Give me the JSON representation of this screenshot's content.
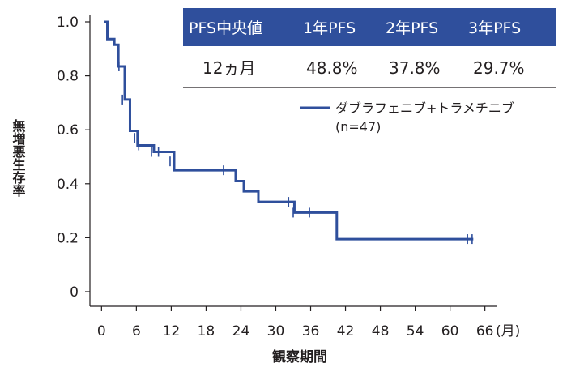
{
  "chart_data": {
    "type": "line",
    "subtype": "kaplan-meier",
    "title": "",
    "xlabel": "観察期間",
    "ylabel": "無増悪生存率",
    "x_unit": "(月)",
    "xlim": [
      -2,
      68
    ],
    "ylim": [
      0,
      1.0
    ],
    "x_ticks": [
      0,
      6,
      12,
      18,
      24,
      30,
      36,
      42,
      48,
      54,
      60,
      66
    ],
    "y_ticks": [
      0,
      0.2,
      0.4,
      0.6,
      0.8,
      1.0
    ],
    "y_tick_labels": [
      "0",
      "0.2",
      "0.4",
      "0.6",
      "0.8",
      "1.0"
    ],
    "grid": false,
    "series": [
      {
        "name": "ダブラフェニブ+トラメチニブ",
        "color": "#2f4f9c",
        "steps": [
          [
            0.5,
            1.0
          ],
          [
            1.0,
            0.936
          ],
          [
            2.2,
            0.915
          ],
          [
            2.9,
            0.835
          ],
          [
            4.0,
            0.712
          ],
          [
            4.9,
            0.596
          ],
          [
            6.2,
            0.542
          ],
          [
            9.0,
            0.518
          ],
          [
            11.0,
            0.518
          ],
          [
            12.5,
            0.45
          ],
          [
            22.0,
            0.45
          ],
          [
            23.1,
            0.41
          ],
          [
            24.5,
            0.372
          ],
          [
            27.0,
            0.333
          ],
          [
            33.2,
            0.293
          ],
          [
            40.5,
            0.195
          ],
          [
            64.0,
            0.195
          ]
        ],
        "censors": [
          [
            3.0,
            0.835
          ],
          [
            3.6,
            0.712
          ],
          [
            5.7,
            0.57
          ],
          [
            6.4,
            0.542
          ],
          [
            8.6,
            0.518
          ],
          [
            9.8,
            0.518
          ],
          [
            11.8,
            0.483
          ],
          [
            21.0,
            0.45
          ],
          [
            32.2,
            0.333
          ],
          [
            33.0,
            0.293
          ],
          [
            35.8,
            0.293
          ],
          [
            63.0,
            0.195
          ],
          [
            63.8,
            0.195
          ]
        ]
      }
    ],
    "legend": {
      "position": "top-right",
      "label": "ダブラフェニブ+トラメチニブ",
      "n": "(n=47)"
    },
    "table": {
      "headers": [
        "PFS中央値",
        "1年PFS",
        "2年PFS",
        "3年PFS"
      ],
      "values": [
        "12ヵ月",
        "48.8%",
        "37.8%",
        "29.7%"
      ],
      "header_color": "#2f4f9c"
    }
  }
}
